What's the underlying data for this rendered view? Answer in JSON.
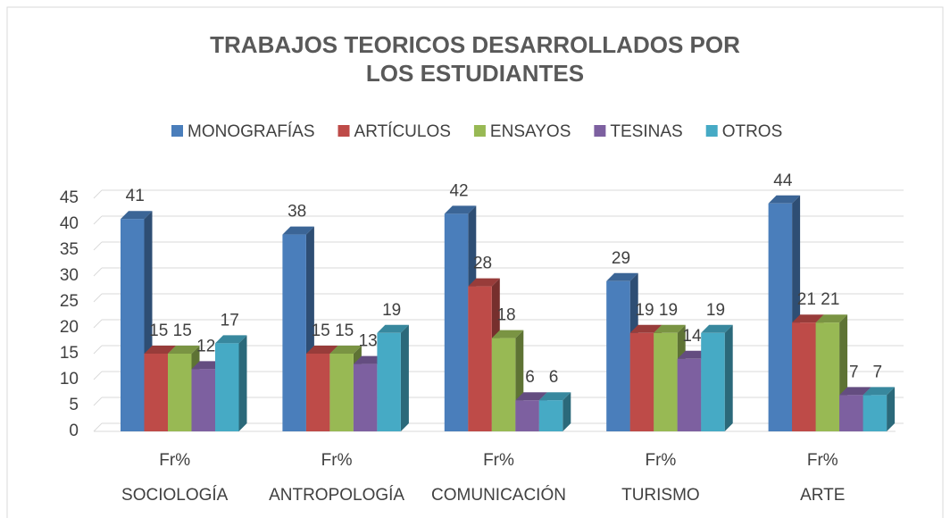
{
  "chart_data": {
    "type": "bar3d",
    "title": "TRABAJOS TEORICOS DESARROLLADOS POR LOS ESTUDIANTES",
    "categories": [
      "SOCIOLOGÍA",
      "ANTROPOLOGÍA",
      "COMUNICACIÓN",
      "TURISMO",
      "ARTE"
    ],
    "category_sublabels": [
      "Fr%",
      "Fr%",
      "Fr%",
      "Fr%",
      "Fr%"
    ],
    "series": [
      {
        "name": "MONOGRAFÍAS",
        "color": "#4a7ebb",
        "values": [
          41,
          38,
          42,
          29,
          44
        ]
      },
      {
        "name": "ARTÍCULOS",
        "color": "#be4b48",
        "values": [
          15,
          15,
          28,
          19,
          21
        ]
      },
      {
        "name": "ENSAYOS",
        "color": "#98b954",
        "values": [
          15,
          15,
          18,
          19,
          21
        ]
      },
      {
        "name": "TESINAS",
        "color": "#7d60a0",
        "values": [
          12,
          13,
          6,
          14,
          7
        ]
      },
      {
        "name": "OTROS",
        "color": "#46aac5",
        "values": [
          17,
          19,
          6,
          19,
          7
        ]
      }
    ],
    "ylim": [
      0,
      45
    ],
    "yticks": [
      0,
      5,
      10,
      15,
      20,
      25,
      30,
      35,
      40,
      45
    ],
    "grid": true,
    "legend": "top"
  }
}
